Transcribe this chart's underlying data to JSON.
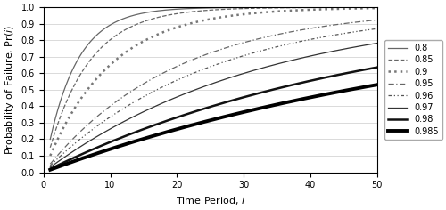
{
  "xlabel": "Time Period, $i$",
  "ylabel": "Probability of Failure, Pr($i$)",
  "xlim": [
    1,
    50
  ],
  "ylim": [
    0,
    1
  ],
  "xticks": [
    0,
    10,
    20,
    30,
    40,
    50
  ],
  "yticks": [
    0,
    0.1,
    0.2,
    0.3,
    0.4,
    0.5,
    0.6,
    0.7,
    0.8,
    0.9,
    1.0
  ],
  "series": [
    {
      "r": 0.8,
      "label": "0.8"
    },
    {
      "r": 0.85,
      "label": "0.85"
    },
    {
      "r": 0.9,
      "label": "0.9"
    },
    {
      "r": 0.95,
      "label": "0.95"
    },
    {
      "r": 0.96,
      "label": "0.96"
    },
    {
      "r": 0.97,
      "label": "0.97"
    },
    {
      "r": 0.98,
      "label": "0.98"
    },
    {
      "r": 0.985,
      "label": "0.985"
    }
  ],
  "grid_color": "#cccccc",
  "figsize": [
    5.0,
    2.36
  ],
  "dpi": 100
}
